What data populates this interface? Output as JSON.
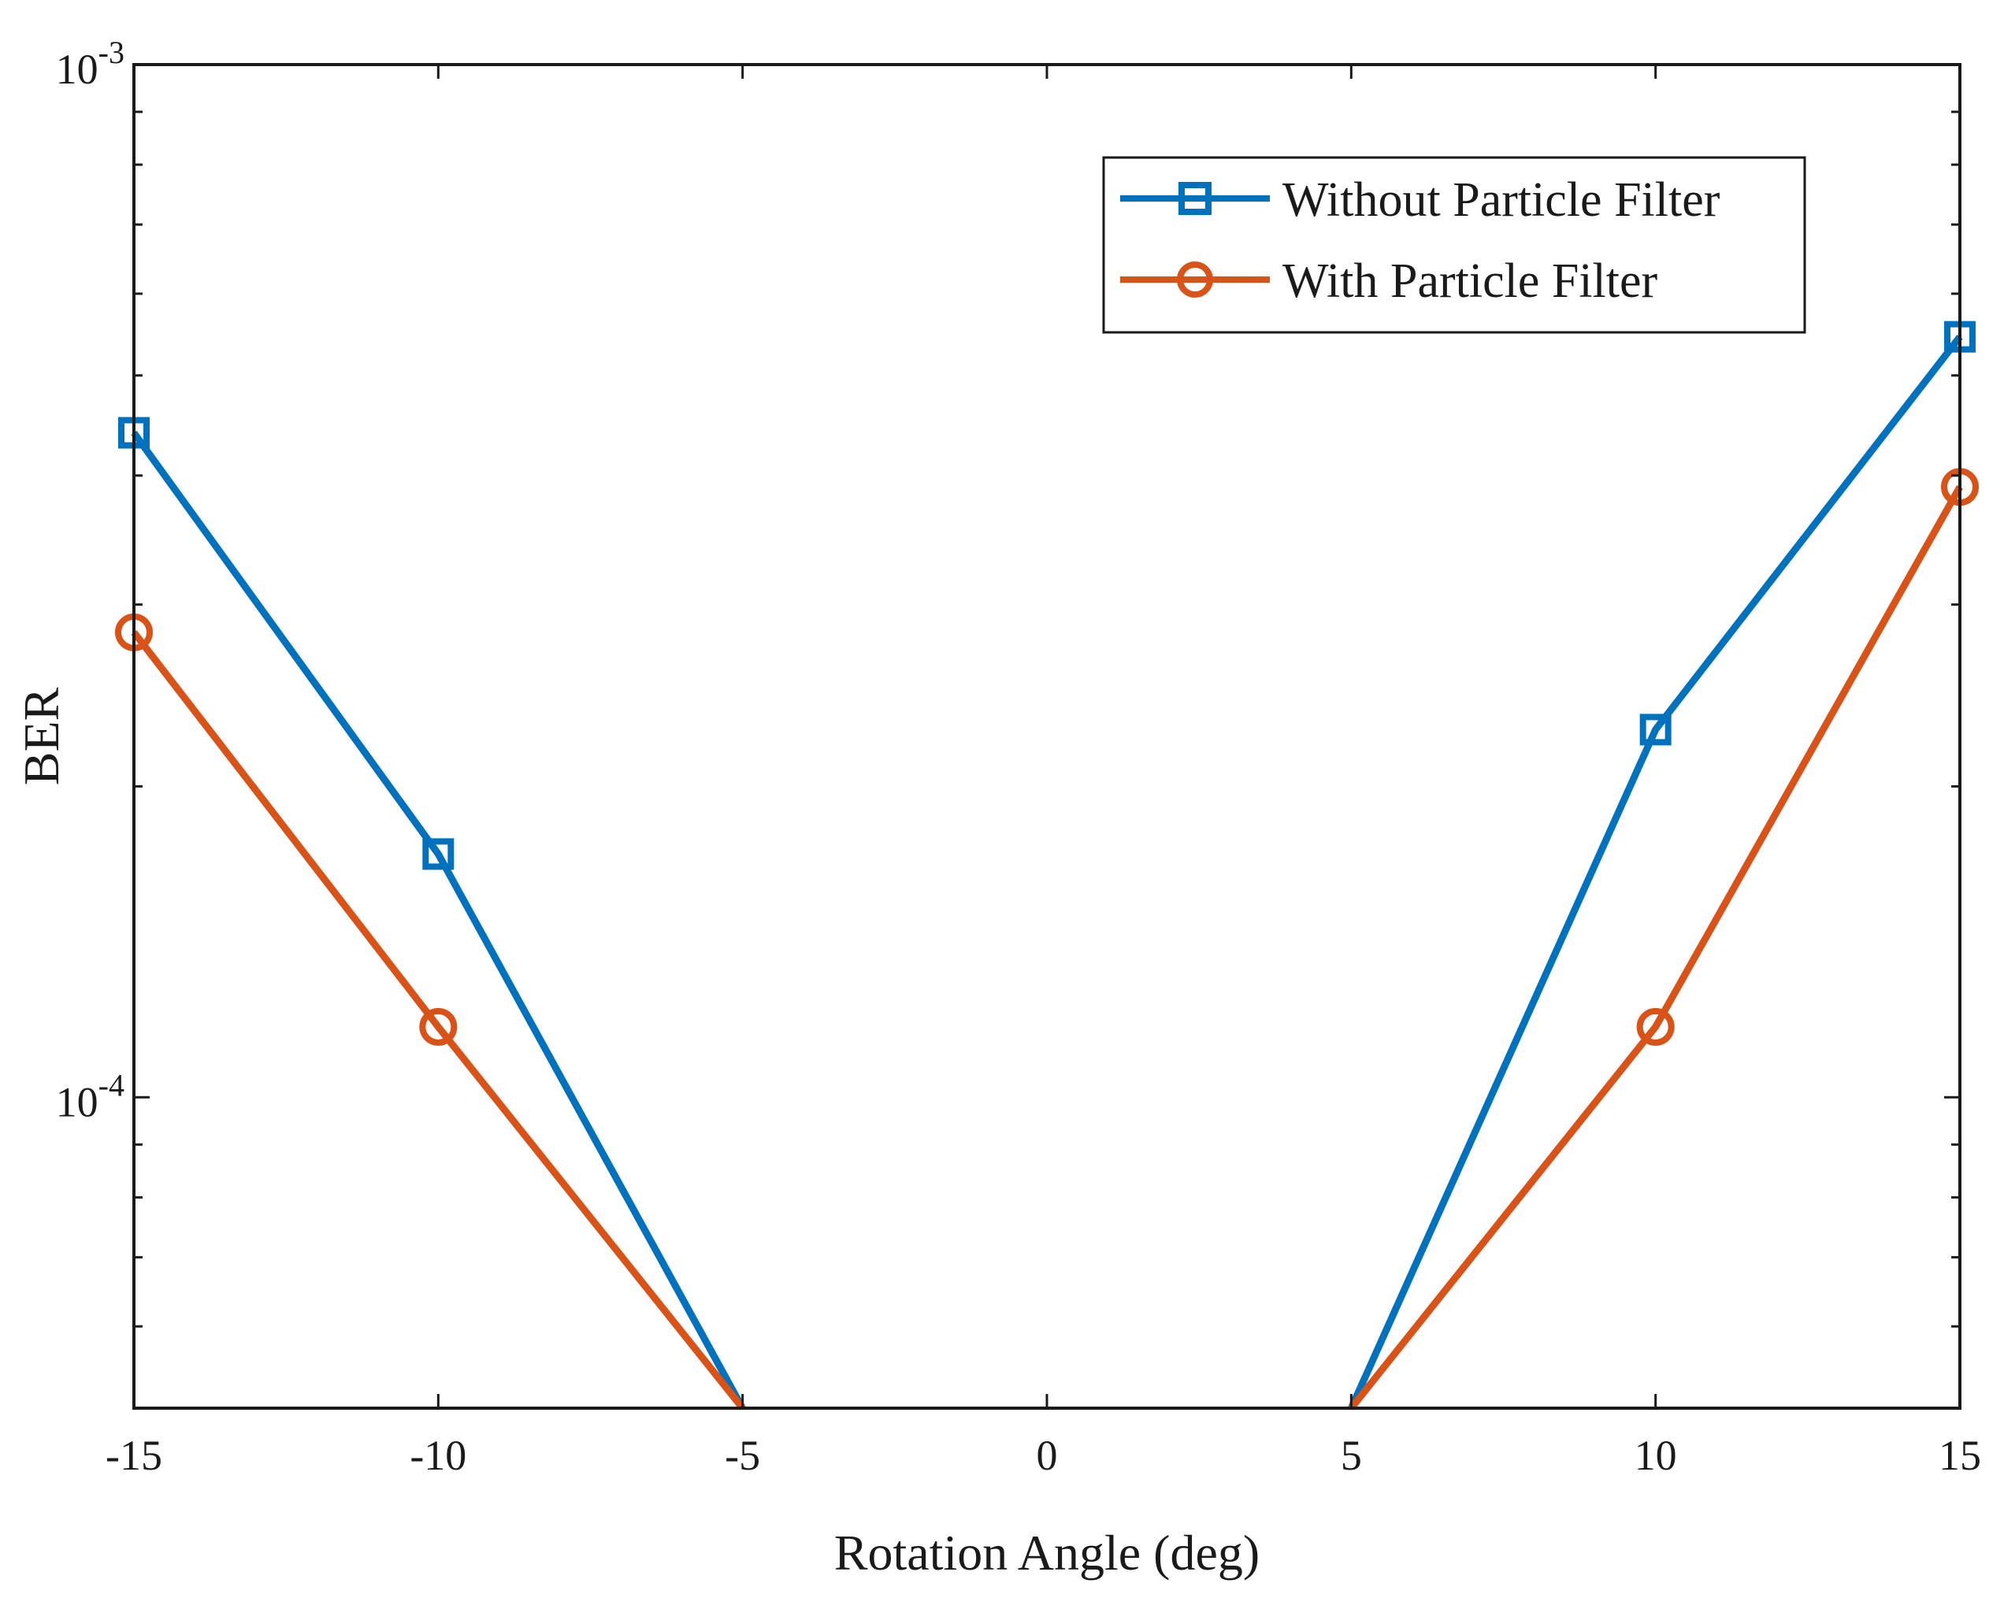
{
  "chart_data": {
    "type": "line",
    "title": "",
    "xlabel": "Rotation Angle (deg)",
    "ylabel": "BER",
    "x": [
      -15,
      -10,
      -5,
      0,
      5,
      10,
      15
    ],
    "xlim": [
      -15,
      15
    ],
    "ylim": [
      5e-05,
      0.001
    ],
    "yscale": "log",
    "xticks": [
      -15,
      -10,
      -5,
      0,
      5,
      10,
      15
    ],
    "xtick_labels": [
      "-15",
      "-10",
      "-5",
      "0",
      "5",
      "10",
      "15"
    ],
    "yticks": [
      {
        "base": "10",
        "exp": "-3",
        "value": 0.001
      },
      {
        "base": "10",
        "exp": "-4",
        "value": 0.0001
      }
    ],
    "y_minor_ticks": [
      6e-05,
      7e-05,
      8e-05,
      9e-05,
      0.0002,
      0.0003,
      0.0004,
      0.0005,
      0.0006,
      0.0007,
      0.0008,
      0.0009
    ],
    "grid": false,
    "legend_position": "top-right",
    "series": [
      {
        "name": "Without Particle Filter",
        "color": "#0072BD",
        "marker": "square",
        "points": [
          {
            "x": -15,
            "y": 0.00044
          },
          {
            "x": -10,
            "y": 0.000172
          },
          {
            "x": -5,
            "y": 5e-05
          },
          {
            "x": 5,
            "y": 5e-05
          },
          {
            "x": 10,
            "y": 0.000227
          },
          {
            "x": 15,
            "y": 0.000545
          }
        ]
      },
      {
        "name": "With Particle Filter",
        "color": "#D95319",
        "marker": "circle",
        "points": [
          {
            "x": -15,
            "y": 0.000282
          },
          {
            "x": -10,
            "y": 0.000117
          },
          {
            "x": -5,
            "y": 5e-05
          },
          {
            "x": 5,
            "y": 5e-05
          },
          {
            "x": 10,
            "y": 0.000117
          },
          {
            "x": 15,
            "y": 0.00039
          }
        ]
      }
    ]
  }
}
